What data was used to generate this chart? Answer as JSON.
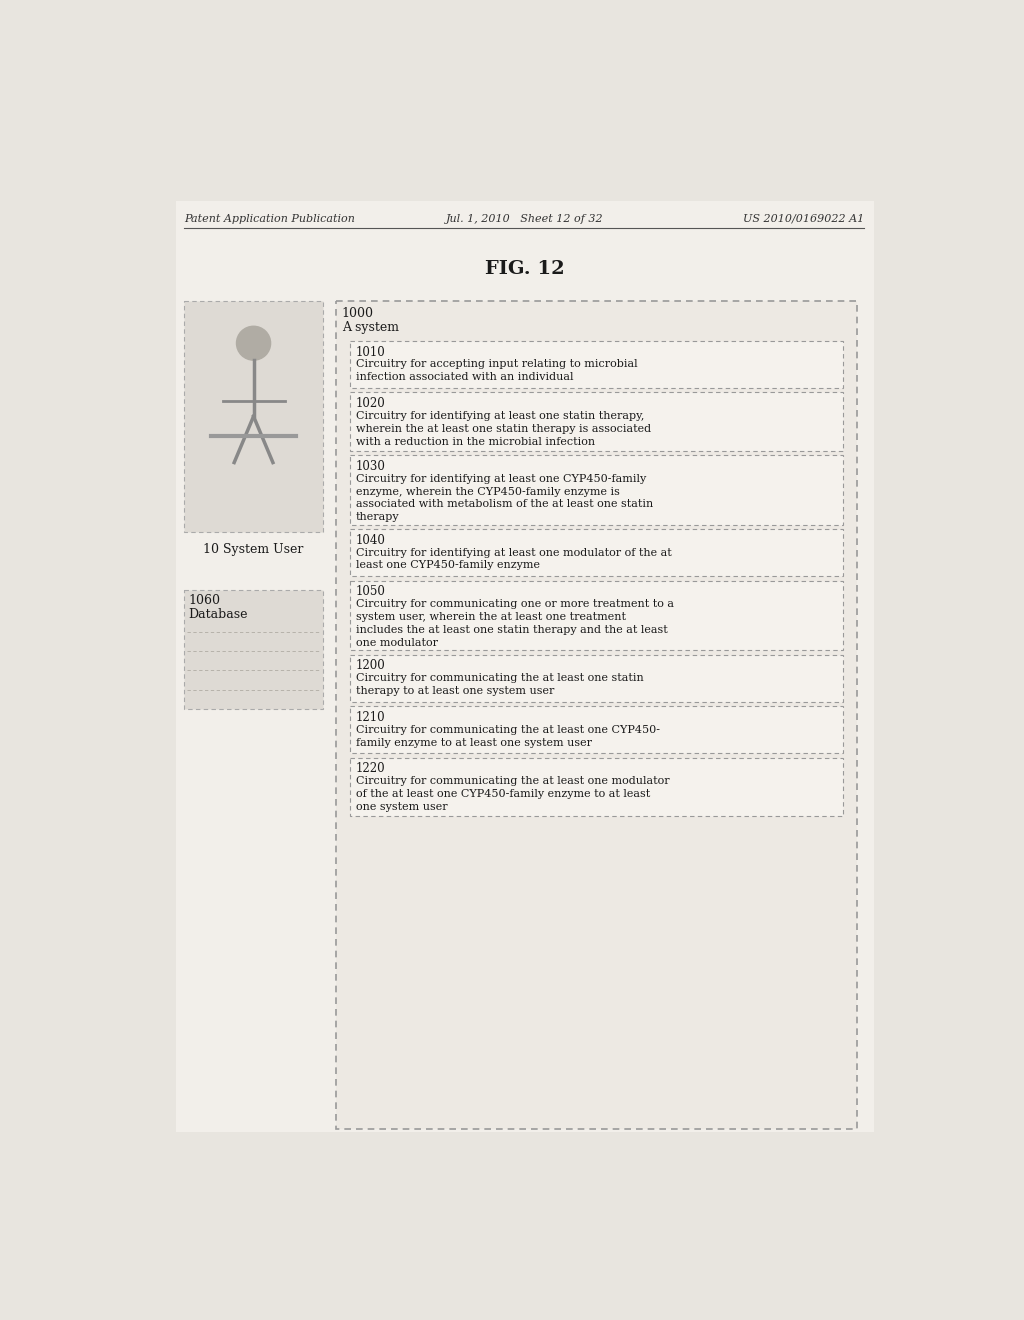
{
  "header_left": "Patent Application Publication",
  "header_mid": "Jul. 1, 2010   Sheet 12 of 32",
  "header_right": "US 2010/0169022 A1",
  "fig_title": "FIG. 12",
  "outer_box_label": "1000",
  "outer_box_sublabel": "A system",
  "boxes": [
    {
      "id": "1010",
      "text": "Circuitry for accepting input relating to microbial\ninfection associated with an individual",
      "nlines": 2
    },
    {
      "id": "1020",
      "text": "Circuitry for identifying at least one statin therapy,\nwherein the at least one statin therapy is associated\nwith a reduction in the microbial infection",
      "nlines": 3
    },
    {
      "id": "1030",
      "text": "Circuitry for identifying at least one CYP450-family\nenzyme, wherein the CYP450-family enzyme is\nassociated with metabolism of the at least one statin\ntherapy",
      "nlines": 4
    },
    {
      "id": "1040",
      "text": "Circuitry for identifying at least one modulator of the at\nleast one CYP450-family enzyme",
      "nlines": 2
    },
    {
      "id": "1050",
      "text": "Circuitry for communicating one or more treatment to a\nsystem user, wherein the at least one treatment\nincludes the at least one statin therapy and the at least\none modulator",
      "nlines": 4
    },
    {
      "id": "1200",
      "text": "Circuitry for communicating the at least one statin\ntherapy to at least one system user",
      "nlines": 2
    },
    {
      "id": "1210",
      "text": "Circuitry for communicating the at least one CYP450-\nfamily enzyme to at least one system user",
      "nlines": 2
    },
    {
      "id": "1220",
      "text": "Circuitry for communicating the at least one modulator\nof the at least one CYP450-family enzyme to at least\none system user",
      "nlines": 3
    }
  ],
  "person_label": "10 System User",
  "db_label_line1": "1060",
  "db_label_line2": "Database",
  "page_bg": "#e8e5df",
  "inner_page_bg": "#f0ede8",
  "box_bg": "#f5f2ed",
  "outer_box_bg": "#ede9e3",
  "box_border": "#999999",
  "text_color": "#1a1a1a",
  "header_color": "#333333"
}
